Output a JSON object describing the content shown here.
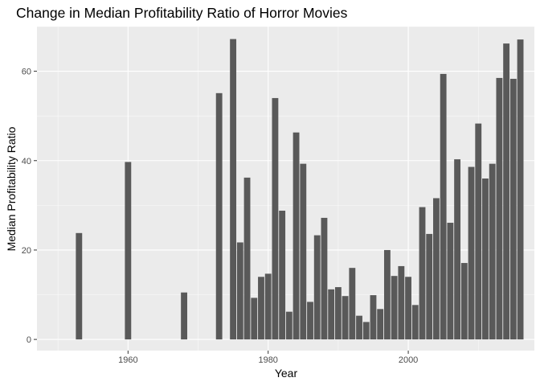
{
  "chart_data": {
    "type": "bar",
    "title": "Change in Median Profitability Ratio of Horror Movies",
    "xlabel": "Year",
    "ylabel": "Median Profitability Ratio",
    "xlim": [
      1947,
      2018
    ],
    "ylim": [
      -2.5,
      70
    ],
    "x_ticks": [
      1960,
      1980,
      2000
    ],
    "y_ticks": [
      0,
      20,
      40,
      60
    ],
    "grid": true,
    "x": [
      1953,
      1960,
      1968,
      1973,
      1975,
      1976,
      1977,
      1978,
      1979,
      1980,
      1981,
      1982,
      1983,
      1984,
      1985,
      1986,
      1987,
      1988,
      1989,
      1990,
      1991,
      1992,
      1993,
      1994,
      1995,
      1996,
      1997,
      1998,
      1999,
      2000,
      2001,
      2002,
      2003,
      2004,
      2005,
      2006,
      2007,
      2008,
      2009,
      2010,
      2011,
      2012,
      2013,
      2014,
      2015,
      2016
    ],
    "values": [
      23.8,
      39.7,
      10.5,
      55.1,
      67.2,
      21.7,
      36.2,
      9.3,
      14.0,
      14.7,
      54.0,
      28.8,
      6.2,
      46.3,
      39.3,
      8.4,
      23.3,
      27.2,
      11.2,
      11.7,
      9.7,
      16.0,
      5.3,
      3.9,
      9.9,
      6.8,
      20.0,
      14.2,
      16.4,
      14.0,
      7.7,
      29.6,
      23.6,
      31.6,
      59.4,
      26.1,
      40.3,
      17.1,
      38.6,
      48.3,
      36.0,
      39.3,
      58.5,
      66.2,
      58.3,
      67.1
    ]
  },
  "colors": {
    "panel": "#ebebeb",
    "grid_major": "#ffffff",
    "bar": "#595959",
    "tick_text": "#4d4d4d",
    "axis_title": "#000000"
  }
}
